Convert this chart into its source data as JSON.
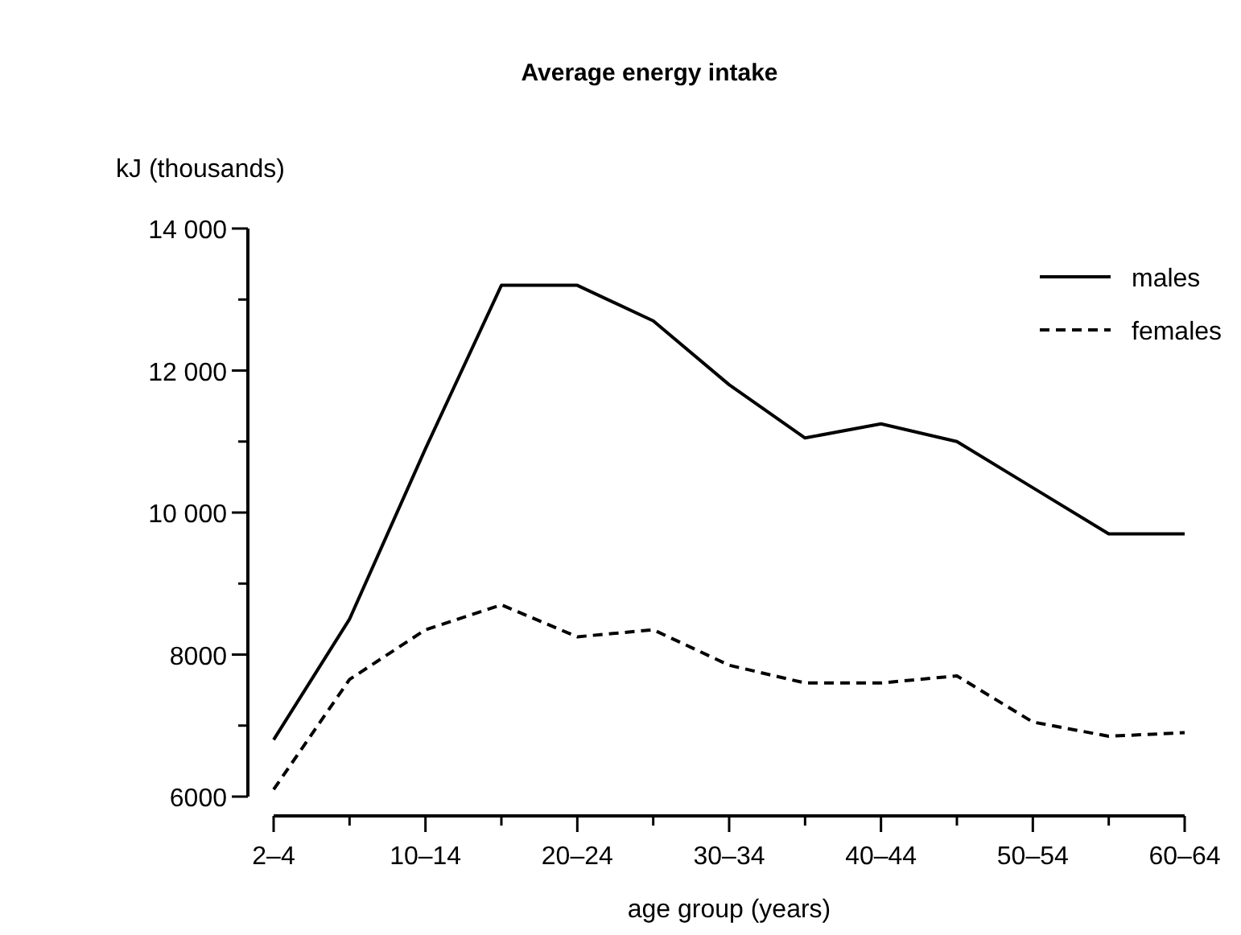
{
  "chart_data": {
    "type": "line",
    "title": "Average energy intake",
    "xlabel": "age group (years)",
    "ylabel": "kJ (thousands)",
    "categories": [
      "2–4",
      null,
      "10–14",
      null,
      "20–24",
      null,
      "30–34",
      null,
      "40–44",
      null,
      "50–54",
      null,
      "60–64"
    ],
    "series": [
      {
        "name": "males",
        "color": "#000000",
        "line_style": "solid",
        "values": [
          6800,
          8500,
          10900,
          13200,
          13200,
          12700,
          11800,
          11050,
          11250,
          11000,
          10350,
          9700,
          9700
        ]
      },
      {
        "name": "females",
        "color": "#000000",
        "line_style": "dashed",
        "values": [
          6100,
          7650,
          8350,
          8700,
          8250,
          8350,
          7850,
          7600,
          7600,
          7700,
          7050,
          6850,
          6900
        ]
      }
    ],
    "ylim": [
      6000,
      14000
    ],
    "yticks": [
      {
        "value": 6000,
        "label": "6000"
      },
      {
        "value": 7000,
        "label": null
      },
      {
        "value": 8000,
        "label": "8000"
      },
      {
        "value": 9000,
        "label": null
      },
      {
        "value": 10000,
        "label": "10 000"
      },
      {
        "value": 11000,
        "label": null
      },
      {
        "value": 12000,
        "label": "12 000"
      },
      {
        "value": 13000,
        "label": null
      },
      {
        "value": 14000,
        "label": "14 000"
      }
    ],
    "legend": "top right",
    "grid": false,
    "marker": "none"
  }
}
